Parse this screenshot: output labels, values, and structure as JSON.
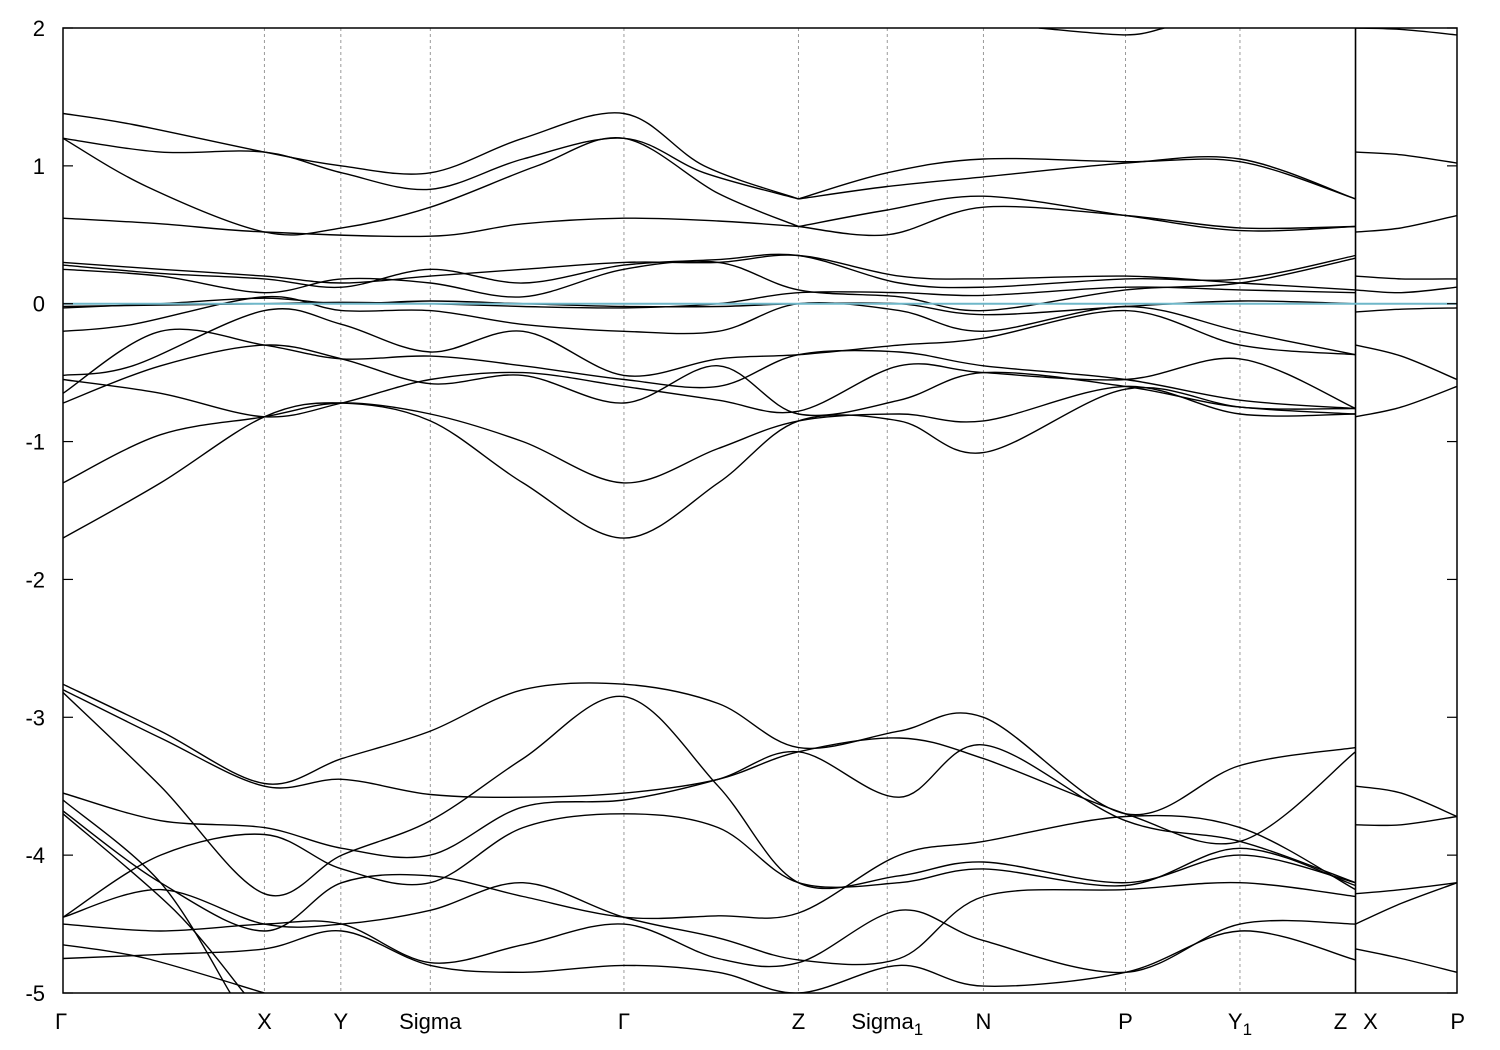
{
  "chart_data": {
    "type": "line",
    "ylim": [
      -5,
      2
    ],
    "yticks": [
      -5,
      -4,
      -3,
      -2,
      -1,
      0,
      1,
      2
    ],
    "xlim": [
      0,
      1.0
    ],
    "grid": "vertical dashed lines at high-symmetry points",
    "kpoints": [
      {
        "label": "Γ",
        "sub": "",
        "x": 0.0
      },
      {
        "label": "X",
        "sub": "",
        "x": 0.1445
      },
      {
        "label": "Y",
        "sub": "",
        "x": 0.1993
      },
      {
        "label": "Sigma",
        "sub": "",
        "x": 0.2635
      },
      {
        "label": "Γ",
        "sub": "",
        "x": 0.4024
      },
      {
        "label": "Z",
        "sub": "",
        "x": 0.5276
      },
      {
        "label": "Sigma",
        "sub": "1",
        "x": 0.5913
      },
      {
        "label": "N",
        "sub": "",
        "x": 0.6603
      },
      {
        "label": "P",
        "sub": "",
        "x": 0.7622
      },
      {
        "label": "Y",
        "sub": "1",
        "x": 0.8443
      },
      {
        "label": "Z",
        "sub": "",
        "x": 0.9272
      },
      {
        "label": "X",
        "sub": "",
        "x": 0.9272
      },
      {
        "label": "P",
        "sub": "",
        "x": 1.0
      }
    ],
    "fermi_level": 0.0,
    "series": [
      {
        "x": [
          0.0,
          0.05,
          0.1445,
          0.2,
          0.2635,
          0.33,
          0.4024,
          0.46,
          0.5276
        ],
        "y": [
          1.38,
          1.3,
          1.1,
          1.0,
          0.95,
          1.2,
          1.38,
          1.0,
          0.76
        ]
      },
      {
        "x": [
          0.0,
          0.07,
          0.1445,
          0.2,
          0.2635,
          0.33,
          0.4024,
          0.46,
          0.5276
        ],
        "y": [
          1.2,
          1.1,
          1.1,
          0.95,
          0.83,
          1.05,
          1.2,
          0.95,
          0.76
        ]
      },
      {
        "x": [
          0.0,
          0.06,
          0.1445,
          0.2,
          0.2635,
          0.34,
          0.4024,
          0.47,
          0.5276
        ],
        "y": [
          1.2,
          0.85,
          0.52,
          0.55,
          0.7,
          1.0,
          1.2,
          0.8,
          0.56
        ]
      },
      {
        "x": [
          0.0,
          0.07,
          0.1445,
          0.2635,
          0.33,
          0.4024,
          0.47,
          0.5276
        ],
        "y": [
          0.62,
          0.58,
          0.52,
          0.49,
          0.58,
          0.62,
          0.6,
          0.56
        ]
      },
      {
        "x": [
          0.5276,
          0.5913,
          0.6603,
          0.7622,
          0.8443,
          0.9272
        ],
        "y": [
          0.76,
          0.95,
          1.05,
          1.03,
          1.03,
          0.76
        ]
      },
      {
        "x": [
          0.5276,
          0.5913,
          0.6603,
          0.7622,
          0.8443,
          0.9272
        ],
        "y": [
          0.76,
          0.85,
          0.92,
          1.02,
          1.05,
          0.76
        ]
      },
      {
        "x": [
          0.5276,
          0.5913,
          0.6603,
          0.7622,
          0.8443,
          0.9272
        ],
        "y": [
          0.56,
          0.68,
          0.78,
          0.64,
          0.53,
          0.56
        ]
      },
      {
        "x": [
          0.5276,
          0.5913,
          0.6603,
          0.7622,
          0.8443,
          0.9272
        ],
        "y": [
          0.56,
          0.5,
          0.7,
          0.64,
          0.55,
          0.56
        ]
      },
      {
        "x": [
          0.9272,
          0.96,
          1.0
        ],
        "y": [
          1.1,
          1.08,
          1.02
        ]
      },
      {
        "x": [
          0.9272,
          0.96,
          1.0
        ],
        "y": [
          0.52,
          0.55,
          0.64
        ]
      },
      {
        "x": [
          0.7,
          0.7622,
          0.79
        ],
        "y": [
          2.0,
          1.95,
          2.0
        ]
      },
      {
        "x": [
          0.9272,
          0.96,
          1.0
        ],
        "y": [
          2.0,
          1.99,
          1.95
        ]
      },
      {
        "x": [
          0.0,
          0.07,
          0.1445,
          0.2,
          0.2635,
          0.33,
          0.4024,
          0.47,
          0.5276,
          0.6,
          0.6603,
          0.7622,
          0.8443,
          0.9272
        ],
        "y": [
          0.3,
          0.25,
          0.2,
          0.15,
          0.2,
          0.25,
          0.3,
          0.3,
          0.35,
          0.2,
          0.18,
          0.2,
          0.15,
          0.1
        ]
      },
      {
        "x": [
          0.0,
          0.07,
          0.1445,
          0.2,
          0.2635,
          0.33,
          0.4024,
          0.47,
          0.5276,
          0.6,
          0.6603,
          0.7622,
          0.8443,
          0.9272
        ],
        "y": [
          0.28,
          0.22,
          0.18,
          0.12,
          0.25,
          0.15,
          0.28,
          0.32,
          0.35,
          0.15,
          0.12,
          0.18,
          0.18,
          0.35
        ]
      },
      {
        "x": [
          0.0,
          0.07,
          0.1445,
          0.2,
          0.2635,
          0.33,
          0.4024,
          0.47,
          0.5276,
          0.6,
          0.6603,
          0.7622,
          0.8443,
          0.9272
        ],
        "y": [
          0.25,
          0.2,
          0.08,
          0.18,
          0.15,
          0.05,
          0.25,
          0.3,
          0.1,
          0.05,
          -0.05,
          0.1,
          0.15,
          0.33
        ]
      },
      {
        "x": [
          0.0,
          0.07,
          0.1445,
          0.2,
          0.2635,
          0.33,
          0.4024,
          0.47,
          0.5276,
          0.6,
          0.6603,
          0.7622,
          0.8443,
          0.9272
        ],
        "y": [
          -0.02,
          -0.01,
          0.0,
          0.01,
          0.0,
          -0.02,
          -0.03,
          0.0,
          0.08,
          0.08,
          0.06,
          0.12,
          0.1,
          0.08
        ]
      },
      {
        "x": [
          0.0,
          0.07,
          0.1445,
          0.2,
          0.2635,
          0.33,
          0.4024,
          0.47,
          0.5276,
          0.6,
          0.6603,
          0.7622,
          0.8443,
          0.9272
        ],
        "y": [
          -0.03,
          0.0,
          0.04,
          0.0,
          0.02,
          0.0,
          -0.02,
          -0.02,
          0.0,
          0.0,
          -0.08,
          -0.02,
          0.02,
          0.0
        ]
      },
      {
        "x": [
          0.0,
          0.05,
          0.1445,
          0.2,
          0.2635,
          0.33,
          0.4024,
          0.47,
          0.5276,
          0.6,
          0.6603,
          0.7622,
          0.8443,
          0.9272
        ],
        "y": [
          -0.2,
          -0.15,
          0.05,
          -0.05,
          -0.05,
          -0.15,
          -0.2,
          -0.2,
          0.0,
          -0.05,
          -0.2,
          -0.02,
          -0.2,
          -0.37
        ]
      },
      {
        "x": [
          0.0,
          0.05,
          0.1445,
          0.2,
          0.2635,
          0.33,
          0.4024,
          0.47,
          0.5276,
          0.6,
          0.6603,
          0.7622,
          0.8443,
          0.9272
        ],
        "y": [
          -0.52,
          -0.45,
          -0.05,
          -0.15,
          -0.35,
          -0.2,
          -0.52,
          -0.4,
          -0.37,
          -0.3,
          -0.25,
          -0.05,
          -0.3,
          -0.37
        ]
      },
      {
        "x": [
          0.0,
          0.07,
          0.1445,
          0.2,
          0.2635,
          0.33,
          0.4024,
          0.47,
          0.5276,
          0.6,
          0.6603,
          0.7622,
          0.8443,
          0.9272
        ],
        "y": [
          -0.65,
          -0.2,
          -0.3,
          -0.4,
          -0.38,
          -0.45,
          -0.55,
          -0.6,
          -0.37,
          -0.35,
          -0.45,
          -0.55,
          -0.7,
          -0.76
        ]
      },
      {
        "x": [
          0.0,
          0.07,
          0.1445,
          0.2,
          0.2635,
          0.33,
          0.4024,
          0.47,
          0.5276,
          0.6,
          0.6603,
          0.7622,
          0.8443,
          0.9272
        ],
        "y": [
          -0.72,
          -0.45,
          -0.3,
          -0.4,
          -0.58,
          -0.52,
          -0.72,
          -0.45,
          -0.8,
          -0.7,
          -0.5,
          -0.6,
          -0.75,
          -0.76
        ]
      },
      {
        "x": [
          0.0,
          0.07,
          0.1445,
          0.2,
          0.2635,
          0.33,
          0.4024,
          0.47,
          0.5276,
          0.6,
          0.6603,
          0.7622,
          0.8443,
          0.9272
        ],
        "y": [
          -0.55,
          -0.65,
          -0.82,
          -0.72,
          -0.55,
          -0.5,
          -0.6,
          -0.7,
          -0.78,
          -0.45,
          -0.5,
          -0.55,
          -0.4,
          -0.76
        ]
      },
      {
        "x": [
          0.0,
          0.07,
          0.1445,
          0.2,
          0.2635,
          0.33,
          0.4024,
          0.47,
          0.5276,
          0.6,
          0.6603,
          0.7622,
          0.8443,
          0.9272
        ],
        "y": [
          -1.3,
          -0.95,
          -0.82,
          -0.72,
          -0.8,
          -1.0,
          -1.3,
          -1.05,
          -0.85,
          -0.8,
          -0.85,
          -0.6,
          -0.8,
          -0.8
        ]
      },
      {
        "x": [
          0.0,
          0.07,
          0.1445,
          0.2,
          0.2635,
          0.33,
          0.4024,
          0.47,
          0.5276,
          0.6,
          0.6603,
          0.7622,
          0.8443,
          0.9272
        ],
        "y": [
          -1.7,
          -1.3,
          -0.82,
          -0.72,
          -0.85,
          -1.3,
          -1.7,
          -1.3,
          -0.85,
          -0.85,
          -1.08,
          -0.62,
          -0.75,
          -0.8
        ]
      },
      {
        "x": [
          0.9272,
          0.96,
          1.0
        ],
        "y": [
          0.2,
          0.18,
          0.18
        ]
      },
      {
        "x": [
          0.9272,
          0.96,
          1.0
        ],
        "y": [
          0.1,
          0.08,
          0.12
        ]
      },
      {
        "x": [
          0.9272,
          0.96,
          1.0
        ],
        "y": [
          -0.06,
          -0.04,
          -0.03
        ]
      },
      {
        "x": [
          0.9272,
          0.96,
          1.0
        ],
        "y": [
          -0.3,
          -0.38,
          -0.55
        ]
      },
      {
        "x": [
          0.9272,
          0.96,
          1.0
        ],
        "y": [
          -0.82,
          -0.75,
          -0.6
        ]
      },
      {
        "x": [
          0.0,
          0.07,
          0.1445,
          0.2,
          0.2635,
          0.33,
          0.4024,
          0.47,
          0.5276,
          0.6,
          0.6603,
          0.7622,
          0.8443,
          0.9272
        ],
        "y": [
          -2.76,
          -3.1,
          -3.48,
          -3.3,
          -3.1,
          -2.8,
          -2.76,
          -2.9,
          -3.22,
          -3.1,
          -3.0,
          -3.7,
          -3.35,
          -3.22
        ]
      },
      {
        "x": [
          0.0,
          0.07,
          0.1445,
          0.2,
          0.2635,
          0.33,
          0.4024,
          0.47,
          0.5276,
          0.6,
          0.6603,
          0.7622,
          0.8443,
          0.9272
        ],
        "y": [
          -2.8,
          -3.15,
          -3.5,
          -3.45,
          -3.56,
          -3.58,
          -3.55,
          -3.45,
          -3.25,
          -3.15,
          -3.3,
          -3.7,
          -3.9,
          -3.25
        ]
      },
      {
        "x": [
          0.0,
          0.07,
          0.1445,
          0.2,
          0.2635,
          0.33,
          0.4024,
          0.47,
          0.5276,
          0.6,
          0.6603,
          0.7622,
          0.8443,
          0.9272
        ],
        "y": [
          -2.82,
          -3.5,
          -4.28,
          -4.0,
          -3.75,
          -3.3,
          -2.85,
          -3.5,
          -4.2,
          -4.15,
          -4.05,
          -4.2,
          -4.0,
          -4.2
        ]
      },
      {
        "x": [
          0.0,
          0.07,
          0.1445,
          0.2,
          0.2635,
          0.33,
          0.4024,
          0.47,
          0.5276,
          0.6,
          0.6603,
          0.7622,
          0.8443,
          0.9272
        ],
        "y": [
          -3.55,
          -3.75,
          -3.8,
          -3.95,
          -4.0,
          -3.65,
          -3.6,
          -3.45,
          -3.25,
          -3.58,
          -3.2,
          -3.75,
          -3.9,
          -4.2
        ]
      },
      {
        "x": [
          0.0,
          0.07,
          0.1445,
          0.2,
          0.2635,
          0.33,
          0.4024,
          0.47,
          0.5276,
          0.6,
          0.6603,
          0.7622,
          0.8443,
          0.9272
        ],
        "y": [
          -3.68,
          -4.2,
          -4.55,
          -4.2,
          -4.15,
          -4.3,
          -4.45,
          -4.44,
          -4.42,
          -4.0,
          -3.9,
          -3.72,
          -3.8,
          -4.25
        ]
      },
      {
        "x": [
          0.0,
          0.07,
          0.1445,
          0.2,
          0.2635,
          0.33,
          0.4024,
          0.47,
          0.5276,
          0.6,
          0.6603,
          0.7622,
          0.8443,
          0.9272
        ],
        "y": [
          -4.45,
          -4.0,
          -3.85,
          -4.1,
          -4.2,
          -3.8,
          -3.7,
          -3.8,
          -4.2,
          -4.2,
          -4.1,
          -4.22,
          -3.95,
          -4.22
        ]
      },
      {
        "x": [
          0.0,
          0.07,
          0.1445,
          0.2,
          0.2635,
          0.33,
          0.4024,
          0.47,
          0.5276,
          0.6,
          0.6603,
          0.7622,
          0.8443,
          0.9272
        ],
        "y": [
          -4.45,
          -4.25,
          -4.5,
          -4.5,
          -4.4,
          -4.2,
          -4.45,
          -4.6,
          -4.76,
          -4.75,
          -4.3,
          -4.25,
          -4.2,
          -4.3
        ]
      },
      {
        "x": [
          0.0,
          0.07,
          0.1445,
          0.2,
          0.2635,
          0.33,
          0.4024,
          0.47,
          0.5276,
          0.6,
          0.6603,
          0.7622,
          0.8443,
          0.9272
        ],
        "y": [
          -4.5,
          -4.55,
          -4.5,
          -4.5,
          -4.78,
          -4.65,
          -4.5,
          -4.75,
          -4.78,
          -4.4,
          -4.62,
          -4.85,
          -4.5,
          -4.5
        ]
      },
      {
        "x": [
          0.0,
          0.07,
          0.1445,
          0.2,
          0.2635,
          0.33,
          0.4024,
          0.47,
          0.5276,
          0.6,
          0.6603,
          0.7622,
          0.8443,
          0.9272
        ],
        "y": [
          -4.75,
          -4.72,
          -4.68,
          -4.55,
          -4.8,
          -4.85,
          -4.8,
          -4.85,
          -5.0,
          -4.8,
          -4.95,
          -4.85,
          -4.55,
          -4.76
        ]
      },
      {
        "x": [
          0.0,
          0.06,
          0.1445
        ],
        "y": [
          -4.65,
          -4.75,
          -5.0
        ]
      },
      {
        "x": [
          0.0,
          0.07,
          0.12
        ],
        "y": [
          -3.6,
          -4.2,
          -5.0
        ]
      },
      {
        "x": [
          0.0,
          0.08,
          0.13
        ],
        "y": [
          -3.7,
          -4.4,
          -5.0
        ]
      },
      {
        "x": [
          0.9272,
          0.96,
          1.0
        ],
        "y": [
          -3.5,
          -3.55,
          -3.72
        ]
      },
      {
        "x": [
          0.9272,
          0.96,
          1.0
        ],
        "y": [
          -3.78,
          -3.78,
          -3.72
        ]
      },
      {
        "x": [
          0.9272,
          0.96,
          1.0
        ],
        "y": [
          -4.28,
          -4.25,
          -4.2
        ]
      },
      {
        "x": [
          0.9272,
          0.96,
          1.0
        ],
        "y": [
          -4.5,
          -4.35,
          -4.2
        ]
      },
      {
        "x": [
          0.9272,
          0.96,
          1.0
        ],
        "y": [
          -4.68,
          -4.75,
          -4.85
        ]
      }
    ]
  }
}
